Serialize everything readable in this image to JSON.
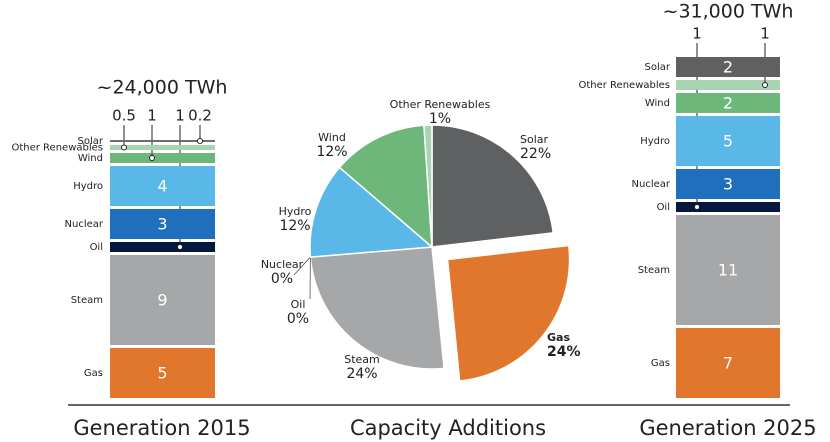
{
  "chart_data": [
    {
      "type": "stacked-bar",
      "title": "Generation 2015",
      "subtitle": "~24,000 TWh",
      "categories": [
        "Solar",
        "Other Renewables",
        "Wind",
        "Hydro",
        "Nuclear",
        "Oil",
        "Steam",
        "Gas"
      ],
      "values": [
        0.2,
        0.5,
        1,
        4,
        3,
        1,
        9,
        5
      ],
      "colors": [
        "#6d6e70",
        "#a9d4b3",
        "#6db77b",
        "#5ab8e8",
        "#1f6fbc",
        "#06163f",
        "#a5a7a9",
        "#e0772c"
      ]
    },
    {
      "type": "pie",
      "title": "Capacity Additions",
      "categories": [
        "Solar",
        "Gas",
        "Steam",
        "Oil",
        "Nuclear",
        "Hydro",
        "Wind",
        "Other Renewables"
      ],
      "values": [
        22,
        24,
        24,
        0,
        0,
        12,
        12,
        1
      ],
      "value_labels": [
        "22%",
        "24%",
        "24%",
        "0%",
        "0%",
        "12%",
        "12%",
        "1%"
      ],
      "exploded": [
        false,
        true,
        false,
        false,
        false,
        false,
        false,
        false
      ],
      "colors": [
        "#5f6062",
        "#e0772c",
        "#a5a7a9",
        "#06163f",
        "#1f6fbc",
        "#5ab8e8",
        "#6db77b",
        "#a9d4b3"
      ]
    },
    {
      "type": "stacked-bar",
      "title": "Generation 2025",
      "subtitle": "~31,000 TWh",
      "categories": [
        "Solar",
        "Other Renewables",
        "Wind",
        "Hydro",
        "Nuclear",
        "Oil",
        "Steam",
        "Gas"
      ],
      "values": [
        2,
        1,
        2,
        5,
        3,
        1,
        11,
        7
      ],
      "colors": [
        "#5f6062",
        "#a9d4b3",
        "#6db77b",
        "#5ab8e8",
        "#1f6fbc",
        "#06163f",
        "#a5a7a9",
        "#e0772c"
      ]
    }
  ]
}
